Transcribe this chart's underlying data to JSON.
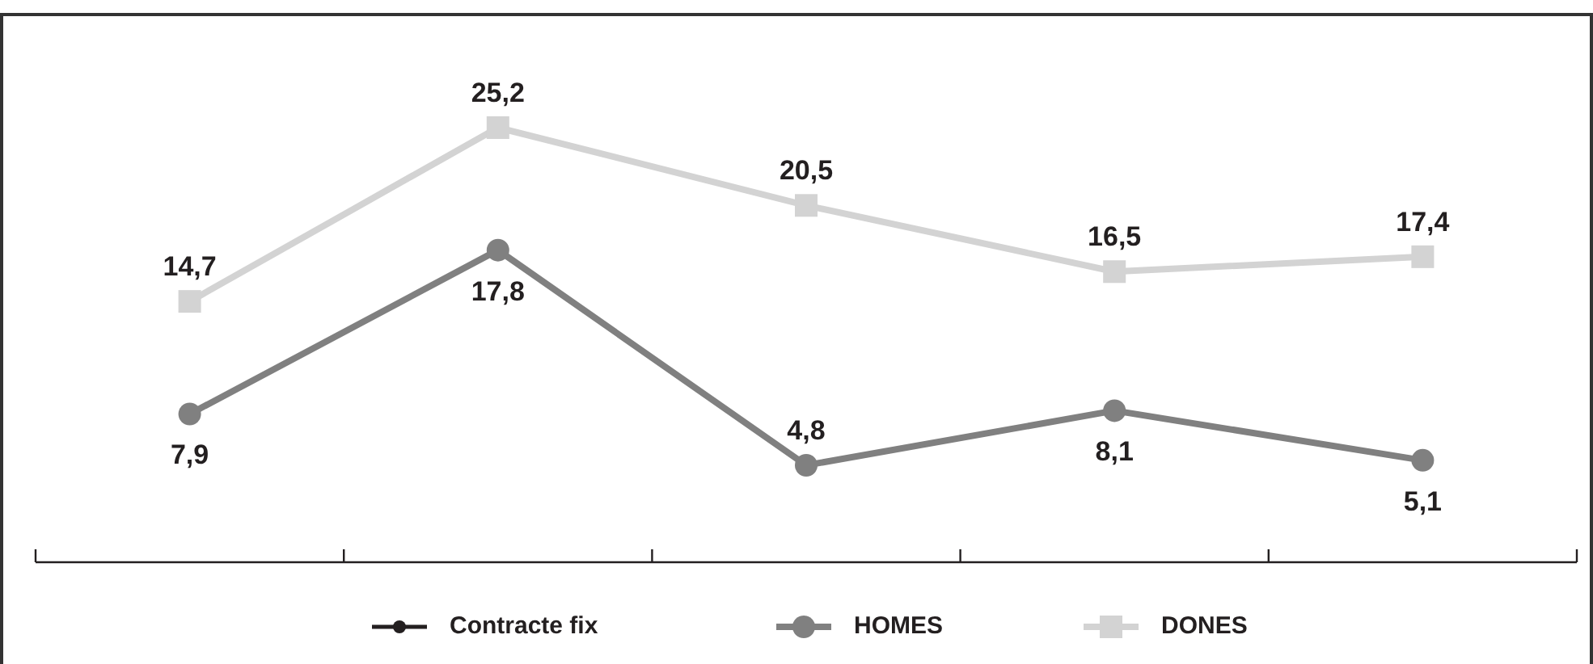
{
  "chart_data": {
    "type": "line",
    "categories": [
      null,
      null,
      null,
      null,
      null
    ],
    "series": [
      {
        "name": "Contracte fix",
        "color": "#231f20",
        "marker": "circle",
        "values": [
          null,
          null,
          null,
          null,
          null
        ]
      },
      {
        "name": "HOMES",
        "color": "#808080",
        "marker": "circle",
        "values": [
          7.9,
          17.8,
          4.8,
          8.1,
          5.1
        ],
        "value_labels": [
          "7,9",
          "17,8",
          "4,8",
          "8,1",
          "5,1"
        ]
      },
      {
        "name": "DONES",
        "color": "#d3d3d3",
        "marker": "square",
        "values": [
          14.7,
          25.2,
          20.5,
          16.5,
          17.4
        ],
        "value_labels": [
          "14,7",
          "25,2",
          "20,5",
          "16,5",
          "17,4"
        ]
      }
    ],
    "legend": "bottom"
  }
}
